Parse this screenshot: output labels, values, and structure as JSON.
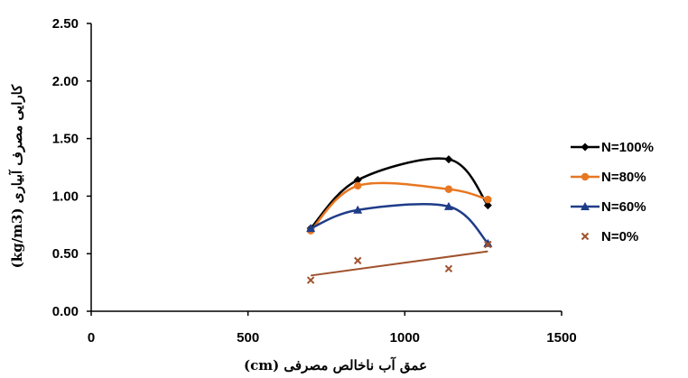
{
  "chart_data": {
    "type": "scatter",
    "title": "",
    "xlabel": "عمق آب ناخالص مصرفی (cm)",
    "ylabel": "کارایی مصرف آبیاری (kg/m3)",
    "xlim": [
      0,
      1500
    ],
    "ylim": [
      0,
      2.5
    ],
    "x_ticks": [
      "0",
      "500",
      "1000",
      "1500"
    ],
    "y_ticks": [
      "0.00",
      "0.50",
      "1.00",
      "1.50",
      "2.00",
      "2.50"
    ],
    "grid": false,
    "legend_position": "right",
    "series": [
      {
        "name": "N=100%",
        "color": "#000000",
        "marker": "diamond",
        "line": "smooth",
        "x": [
          700,
          850,
          1140,
          1265
        ],
        "y": [
          0.72,
          1.14,
          1.32,
          0.92
        ]
      },
      {
        "name": "N=80%",
        "color": "#e87722",
        "marker": "circle",
        "line": "smooth",
        "x": [
          700,
          850,
          1140,
          1265
        ],
        "y": [
          0.7,
          1.09,
          1.06,
          0.97
        ]
      },
      {
        "name": "N=60%",
        "color": "#1f3c88",
        "marker": "triangle",
        "line": "smooth",
        "x": [
          700,
          850,
          1140,
          1265
        ],
        "y": [
          0.72,
          0.88,
          0.91,
          0.59
        ]
      },
      {
        "name": "N=0%",
        "color": "#a0522d",
        "marker": "x",
        "line": "none",
        "x": [
          700,
          850,
          1140,
          1265
        ],
        "y": [
          0.27,
          0.44,
          0.37,
          0.58
        ]
      }
    ],
    "trendline": {
      "series": "N=0%",
      "color": "#a0522d",
      "x": [
        700,
        1265
      ],
      "y": [
        0.31,
        0.52
      ]
    }
  }
}
